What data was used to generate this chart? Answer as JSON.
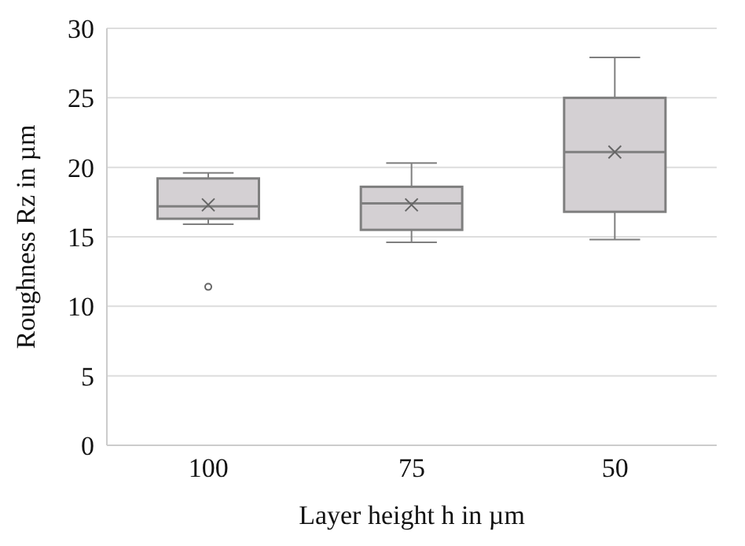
{
  "chart_data": {
    "type": "box",
    "xlabel": "Layer height h in µm",
    "ylabel": "Roughness Rz in µm",
    "categories": [
      "100",
      "75",
      "50"
    ],
    "boxes": [
      {
        "low": 15.9,
        "q1": 16.3,
        "median": 17.2,
        "q3": 19.2,
        "high": 19.6,
        "mean": 17.3,
        "outliers": [
          11.4
        ]
      },
      {
        "low": 14.6,
        "q1": 15.5,
        "median": 17.4,
        "q3": 18.6,
        "high": 20.3,
        "mean": 17.3
      },
      {
        "low": 14.8,
        "q1": 16.8,
        "median": 21.1,
        "q3": 25.0,
        "high": 27.9,
        "mean": 21.1
      }
    ],
    "color": "#d4d0d3",
    "ylim": [
      0,
      30
    ],
    "yticks": [
      0,
      5,
      10,
      15,
      20,
      25,
      30
    ],
    "grid": "y"
  }
}
